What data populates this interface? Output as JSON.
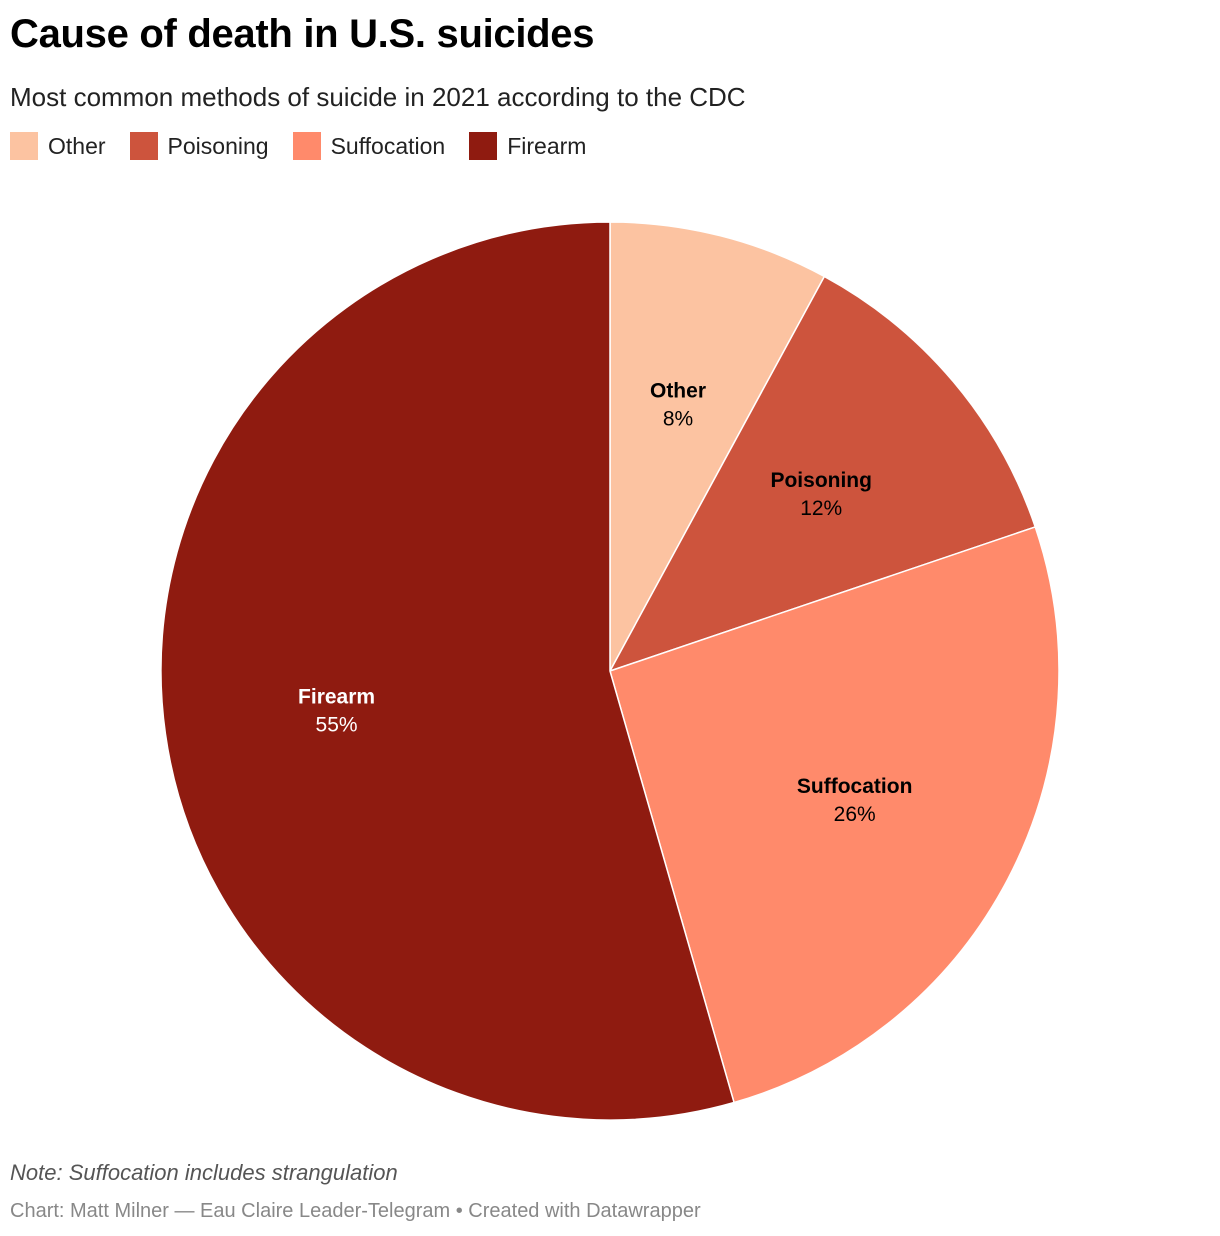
{
  "header": {
    "title": "Cause of death in U.S. suicides",
    "subtitle": "Most common methods of suicide in 2021 according to the CDC"
  },
  "legend": [
    {
      "label": "Other",
      "color": "#fcc3a1"
    },
    {
      "label": "Poisoning",
      "color": "#cd543d"
    },
    {
      "label": "Suffocation",
      "color": "#ff8a6b"
    },
    {
      "label": "Firearm",
      "color": "#8f1b10"
    }
  ],
  "chart_data": {
    "type": "pie",
    "slices": [
      {
        "name": "Other",
        "value": 8,
        "label": "8%",
        "color": "#fcc3a1",
        "label_color": "#000000"
      },
      {
        "name": "Poisoning",
        "value": 12,
        "label": "12%",
        "color": "#cd543d",
        "label_color": "#000000"
      },
      {
        "name": "Suffocation",
        "value": 26,
        "label": "26%",
        "color": "#ff8a6b",
        "label_color": "#000000"
      },
      {
        "name": "Firearm",
        "value": 55,
        "label": "55%",
        "color": "#8f1b10",
        "label_color": "#ffffff"
      }
    ],
    "legend_position": "top-left"
  },
  "footer": {
    "note": "Note: Suffocation includes strangulation",
    "credit": "Chart: Matt Milner — Eau Claire Leader-Telegram • Created with Datawrapper"
  }
}
